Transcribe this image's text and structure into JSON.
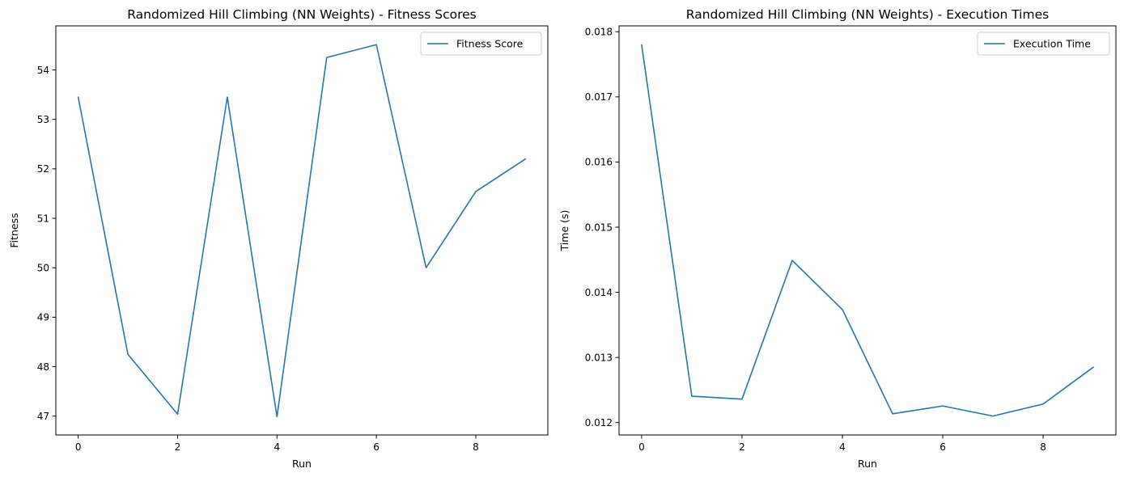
{
  "chart_data": [
    {
      "type": "line",
      "title": "Randomized Hill Climbing (NN Weights) - Fitness Scores",
      "xlabel": "Run",
      "ylabel": "Fitness",
      "xlim": [
        -0.45,
        9.45
      ],
      "ylim": [
        46.62,
        54.89
      ],
      "xticks": [
        0,
        2,
        4,
        6,
        8
      ],
      "xtick_labels": [
        "0",
        "2",
        "4",
        "6",
        "8"
      ],
      "yticks": [
        47,
        48,
        49,
        50,
        51,
        52,
        53,
        54
      ],
      "ytick_labels": [
        "47",
        "48",
        "49",
        "50",
        "51",
        "52",
        "53",
        "54"
      ],
      "grid": false,
      "legend_position": "upper right",
      "series": [
        {
          "name": "Fitness Score",
          "color": "#1f77b4",
          "x": [
            0,
            1,
            2,
            3,
            4,
            5,
            6,
            7,
            8,
            9
          ],
          "values": [
            53.45,
            48.25,
            47.04,
            53.45,
            46.99,
            54.25,
            54.51,
            50.0,
            51.54,
            52.2
          ]
        }
      ]
    },
    {
      "type": "line",
      "title": "Randomized Hill Climbing (NN Weights) - Execution Times",
      "xlabel": "Run",
      "ylabel": "Time (s)",
      "xlim": [
        -0.45,
        9.45
      ],
      "ylim": [
        0.01181,
        0.01809
      ],
      "xticks": [
        0,
        2,
        4,
        6,
        8
      ],
      "xtick_labels": [
        "0",
        "2",
        "4",
        "6",
        "8"
      ],
      "yticks": [
        0.012,
        0.013,
        0.014,
        0.015,
        0.016,
        0.017,
        0.018
      ],
      "ytick_labels": [
        "0.012",
        "0.013",
        "0.014",
        "0.015",
        "0.016",
        "0.017",
        "0.018"
      ],
      "grid": false,
      "legend_position": "upper right",
      "series": [
        {
          "name": "Execution Time",
          "color": "#1f77b4",
          "x": [
            0,
            1,
            2,
            3,
            4,
            5,
            6,
            7,
            8,
            9
          ],
          "values": [
            0.0178,
            0.012405,
            0.01236,
            0.01449,
            0.013735,
            0.012135,
            0.012255,
            0.0121,
            0.012285,
            0.01285
          ]
        }
      ]
    }
  ]
}
